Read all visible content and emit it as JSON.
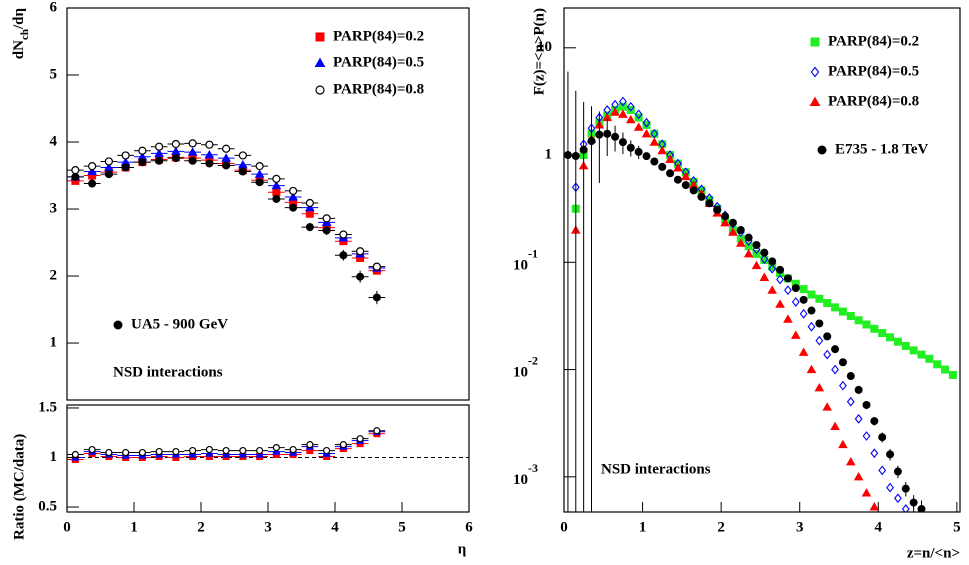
{
  "chart_data": [
    {
      "type": "scatter",
      "ylabel": {
        "main": "dN",
        "sub": "ch",
        "rest": "/dη"
      },
      "xlim": [
        0,
        6
      ],
      "ylim": [
        0.15,
        6
      ],
      "yticks": [
        1,
        2,
        3,
        4,
        5,
        6
      ],
      "xerr": 0.125,
      "annotations": [
        "NSD interactions"
      ],
      "series": [
        {
          "name": "PARP(84)=0.2",
          "color": "#ff0000",
          "marker": "square",
          "x": [
            0.125,
            0.375,
            0.625,
            0.875,
            1.125,
            1.375,
            1.625,
            1.875,
            2.125,
            2.375,
            2.625,
            2.875,
            3.125,
            3.375,
            3.625,
            3.875,
            4.125,
            4.375,
            4.625
          ],
          "values": [
            3.42,
            3.5,
            3.55,
            3.62,
            3.7,
            3.74,
            3.77,
            3.76,
            3.73,
            3.68,
            3.58,
            3.43,
            3.25,
            3.1,
            2.93,
            2.72,
            2.52,
            2.27,
            2.08
          ]
        },
        {
          "name": "PARP(84)=0.5",
          "color": "#0000ff",
          "marker": "triangle",
          "x": [
            0.125,
            0.375,
            0.625,
            0.875,
            1.125,
            1.375,
            1.625,
            1.875,
            2.125,
            2.375,
            2.625,
            2.875,
            3.125,
            3.375,
            3.625,
            3.875,
            4.125,
            4.375,
            4.625
          ],
          "values": [
            3.48,
            3.56,
            3.62,
            3.7,
            3.78,
            3.83,
            3.86,
            3.85,
            3.81,
            3.76,
            3.66,
            3.52,
            3.35,
            3.18,
            3.02,
            2.8,
            2.57,
            2.33,
            2.12
          ]
        },
        {
          "name": "PARP(84)=0.8",
          "color": "#000000",
          "marker": "circle-open",
          "x": [
            0.125,
            0.375,
            0.625,
            0.875,
            1.125,
            1.375,
            1.625,
            1.875,
            2.125,
            2.375,
            2.625,
            2.875,
            3.125,
            3.375,
            3.625,
            3.875,
            4.125,
            4.375,
            4.625
          ],
          "values": [
            3.58,
            3.64,
            3.71,
            3.8,
            3.87,
            3.93,
            3.97,
            3.98,
            3.96,
            3.9,
            3.8,
            3.64,
            3.45,
            3.27,
            3.09,
            2.86,
            2.62,
            2.37,
            2.14
          ]
        },
        {
          "name": "UA5 - 900 GeV",
          "color": "#000000",
          "marker": "circle",
          "x": [
            0.125,
            0.375,
            0.625,
            0.875,
            1.125,
            1.375,
            1.625,
            1.875,
            2.125,
            2.375,
            2.625,
            2.875,
            3.125,
            3.375,
            3.625,
            3.875,
            4.125,
            4.375,
            4.625
          ],
          "values": [
            3.48,
            3.38,
            3.52,
            3.62,
            3.7,
            3.72,
            3.76,
            3.72,
            3.68,
            3.65,
            3.56,
            3.4,
            3.15,
            3.02,
            2.73,
            2.68,
            2.31,
            1.99,
            1.68
          ],
          "errors": [
            0.06,
            0.06,
            0.05,
            0.05,
            0.05,
            0.05,
            0.05,
            0.05,
            0.05,
            0.05,
            0.05,
            0.05,
            0.05,
            0.06,
            0.06,
            0.07,
            0.08,
            0.09,
            0.1
          ]
        }
      ]
    },
    {
      "type": "scatter",
      "ylabel": "Ratio (MC/data)",
      "xlabel": "η",
      "xlim": [
        0,
        6
      ],
      "xticks": [
        0,
        1,
        2,
        3,
        4,
        5,
        6
      ],
      "ylim": [
        0.45,
        1.53
      ],
      "yticks": [
        0.5,
        1,
        1.5
      ],
      "xerr": 0.125,
      "refline": 1,
      "series": [
        {
          "color": "#ff0000",
          "marker": "square",
          "x": [
            0.125,
            0.375,
            0.625,
            0.875,
            1.125,
            1.375,
            1.625,
            1.875,
            2.125,
            2.375,
            2.625,
            2.875,
            3.125,
            3.375,
            3.625,
            3.875,
            4.125,
            4.375,
            4.625
          ],
          "values": [
            0.98,
            1.04,
            1.01,
            1.0,
            1.0,
            1.01,
            1.0,
            1.01,
            1.01,
            1.01,
            1.01,
            1.01,
            1.03,
            1.03,
            1.07,
            1.01,
            1.09,
            1.14,
            1.24
          ]
        },
        {
          "color": "#0000ff",
          "marker": "triangle",
          "x": [
            0.125,
            0.375,
            0.625,
            0.875,
            1.125,
            1.375,
            1.625,
            1.875,
            2.125,
            2.375,
            2.625,
            2.875,
            3.125,
            3.375,
            3.625,
            3.875,
            4.125,
            4.375,
            4.625
          ],
          "values": [
            1.0,
            1.06,
            1.03,
            1.02,
            1.02,
            1.03,
            1.03,
            1.03,
            1.04,
            1.03,
            1.03,
            1.03,
            1.06,
            1.05,
            1.11,
            1.04,
            1.11,
            1.17,
            1.26
          ]
        },
        {
          "color": "#000000",
          "marker": "circle-open",
          "x": [
            0.125,
            0.375,
            0.625,
            0.875,
            1.125,
            1.375,
            1.625,
            1.875,
            2.125,
            2.375,
            2.625,
            2.875,
            3.125,
            3.375,
            3.625,
            3.875,
            4.125,
            4.375,
            4.625
          ],
          "values": [
            1.03,
            1.08,
            1.05,
            1.05,
            1.05,
            1.06,
            1.06,
            1.07,
            1.08,
            1.07,
            1.07,
            1.07,
            1.1,
            1.08,
            1.13,
            1.07,
            1.13,
            1.19,
            1.27
          ]
        }
      ]
    },
    {
      "type": "scatter",
      "ylog": true,
      "ylabel": "F(z)=<n>P(n)",
      "xlabel": "z=n/<n>",
      "xlim": [
        0,
        5.04
      ],
      "xticks": [
        0,
        1,
        2,
        3,
        4,
        5
      ],
      "ylim": [
        0.00047,
        23.5
      ],
      "yticks": [
        10,
        1,
        {
          "value": 0.1,
          "label": "10",
          "sup": "-1"
        },
        {
          "value": 0.01,
          "label": "10",
          "sup": "-2"
        },
        {
          "value": 0.001,
          "label": "10",
          "sup": "-3"
        }
      ],
      "annotations": [
        "NSD interactions"
      ],
      "series": [
        {
          "name": "PARP(84)=0.2",
          "color": "#22ee22",
          "marker": "square",
          "x": [
            0.15,
            0.25,
            0.35,
            0.45,
            0.55,
            0.65,
            0.75,
            0.85,
            0.95,
            1.05,
            1.15,
            1.25,
            1.35,
            1.45,
            1.55,
            1.65,
            1.75,
            1.85,
            1.95,
            2.05,
            2.15,
            2.25,
            2.35,
            2.45,
            2.55,
            2.65,
            2.75,
            2.85,
            2.95,
            3.05,
            3.15,
            3.25,
            3.35,
            3.45,
            3.55,
            3.65,
            3.75,
            3.85,
            3.95,
            4.05,
            4.15,
            4.25,
            4.35,
            4.45,
            4.55,
            4.65,
            4.75,
            4.85,
            4.95
          ],
          "values": [
            0.316,
            1.0,
            1.58,
            2.0,
            2.34,
            2.63,
            2.82,
            2.63,
            2.24,
            1.91,
            1.58,
            1.26,
            1.0,
            0.832,
            0.692,
            0.562,
            0.468,
            0.38,
            0.316,
            0.251,
            0.2,
            0.166,
            0.141,
            0.12,
            0.105,
            0.0912,
            0.0794,
            0.0708,
            0.0631,
            0.0562,
            0.0501,
            0.0457,
            0.0417,
            0.038,
            0.0347,
            0.0316,
            0.0288,
            0.0263,
            0.024,
            0.0219,
            0.02,
            0.0182,
            0.0166,
            0.0151,
            0.0138,
            0.0126,
            0.0112,
            0.01,
            0.00891
          ]
        },
        {
          "name": "PARP(84)=0.5",
          "color": "#0000ff",
          "marker": "diamond-open",
          "x": [
            0.15,
            0.25,
            0.35,
            0.45,
            0.55,
            0.65,
            0.75,
            0.85,
            0.95,
            1.05,
            1.15,
            1.25,
            1.35,
            1.45,
            1.55,
            1.65,
            1.75,
            1.85,
            1.95,
            2.05,
            2.15,
            2.25,
            2.35,
            2.45,
            2.55,
            2.65,
            2.75,
            2.85,
            2.95,
            3.05,
            3.15,
            3.25,
            3.35,
            3.45,
            3.55,
            3.65,
            3.75,
            3.85,
            3.95,
            4.05,
            4.15,
            4.25,
            4.35
          ],
          "values": [
            0.501,
            1.26,
            1.78,
            2.24,
            2.63,
            2.95,
            3.16,
            2.82,
            2.4,
            2.0,
            1.58,
            1.26,
            1.0,
            0.832,
            0.692,
            0.575,
            0.479,
            0.398,
            0.331,
            0.275,
            0.229,
            0.191,
            0.158,
            0.132,
            0.107,
            0.0871,
            0.0692,
            0.055,
            0.0427,
            0.0331,
            0.0251,
            0.0186,
            0.0138,
            0.01,
            0.00708,
            0.00501,
            0.00347,
            0.0024,
            0.00166,
            0.00115,
            0.000794,
            0.000631,
            0.000501
          ]
        },
        {
          "name": "PARP(84)=0.8",
          "color": "#ff0000",
          "marker": "triangle",
          "x": [
            0.15,
            0.25,
            0.35,
            0.45,
            0.55,
            0.65,
            0.75,
            0.85,
            0.95,
            1.05,
            1.15,
            1.25,
            1.35,
            1.45,
            1.55,
            1.65,
            1.75,
            1.85,
            1.95,
            2.05,
            2.15,
            2.25,
            2.35,
            2.45,
            2.55,
            2.65,
            2.75,
            2.85,
            2.95,
            3.05,
            3.15,
            3.25,
            3.35,
            3.45,
            3.55,
            3.65,
            3.75,
            3.85,
            3.95
          ],
          "values": [
            0.2,
            0.794,
            1.41,
            1.91,
            2.24,
            2.51,
            2.4,
            2.14,
            1.82,
            1.58,
            1.32,
            1.1,
            0.912,
            0.759,
            0.631,
            0.525,
            0.437,
            0.355,
            0.288,
            0.234,
            0.191,
            0.151,
            0.12,
            0.0933,
            0.0724,
            0.055,
            0.0407,
            0.0295,
            0.0209,
            0.0145,
            0.01,
            0.00676,
            0.00447,
            0.00295,
            0.002,
            0.00138,
            0.001,
            0.000708,
            0.000525
          ]
        },
        {
          "name": "E735 - 1.8 TeV",
          "color": "#000000",
          "marker": "circle",
          "x": [
            0.05,
            0.15,
            0.25,
            0.35,
            0.45,
            0.55,
            0.65,
            0.75,
            0.85,
            0.95,
            1.05,
            1.15,
            1.25,
            1.35,
            1.45,
            1.55,
            1.65,
            1.75,
            1.85,
            1.95,
            2.05,
            2.15,
            2.25,
            2.35,
            2.45,
            2.55,
            2.65,
            2.75,
            2.85,
            2.95,
            3.05,
            3.15,
            3.25,
            3.35,
            3.45,
            3.55,
            3.65,
            3.75,
            3.85,
            3.95,
            4.05,
            4.15,
            4.25,
            4.35,
            4.45,
            4.55
          ],
          "values": [
            1.0,
            0.98,
            1.12,
            1.35,
            1.55,
            1.58,
            1.48,
            1.32,
            1.17,
            1.07,
            0.977,
            0.871,
            0.776,
            0.676,
            0.589,
            0.525,
            0.468,
            0.407,
            0.355,
            0.309,
            0.269,
            0.234,
            0.2,
            0.17,
            0.145,
            0.123,
            0.102,
            0.0851,
            0.0708,
            0.0575,
            0.0447,
            0.0355,
            0.0269,
            0.0204,
            0.0155,
            0.0117,
            0.0087,
            0.00646,
            0.00468,
            0.00331,
            0.00234,
            0.00162,
            0.00112,
            0.000776,
            0.000575,
            0.000501
          ],
          "errors": [
            5,
            3,
            2,
            1.5,
            1,
            0.6,
            0.4,
            0.3,
            0.2,
            0.15,
            0.06,
            0.05,
            0.04,
            0.035,
            0.03,
            0.025,
            0.02,
            0.018,
            0.015,
            0.012,
            0.01,
            0.009,
            0.008,
            0.007,
            0.006,
            0.005,
            0.004,
            0.0035,
            0.003,
            0.0025,
            0.002,
            0.0016,
            0.0013,
            0.001,
            0.0008,
            0.0007,
            0.0006,
            0.0005,
            0.0004,
            0.0003,
            0.00025,
            0.0002,
            0.00015,
            0.00012,
            0.0001,
            0.0001
          ]
        }
      ]
    }
  ]
}
